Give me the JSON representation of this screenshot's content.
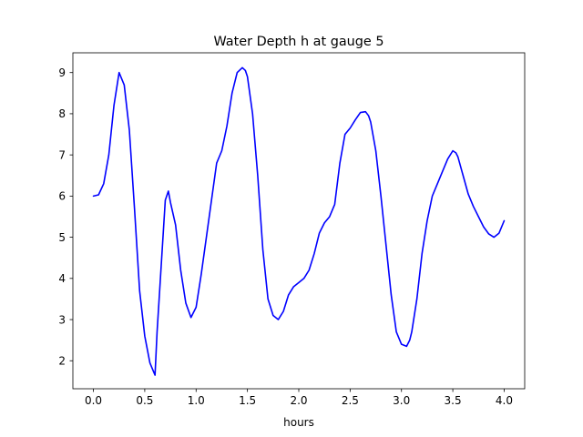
{
  "chart_data": {
    "type": "line",
    "title": "Water Depth h at gauge 5",
    "xlabel": "hours",
    "ylabel": "",
    "xlim": [
      -0.2,
      4.2
    ],
    "ylim": [
      1.32,
      9.48
    ],
    "xticks": [
      0.0,
      0.5,
      1.0,
      1.5,
      2.0,
      2.5,
      3.0,
      3.5,
      4.0
    ],
    "xtick_labels": [
      "0.0",
      "0.5",
      "1.0",
      "1.5",
      "2.0",
      "2.5",
      "3.0",
      "3.5",
      "4.0"
    ],
    "yticks": [
      2,
      3,
      4,
      5,
      6,
      7,
      8,
      9
    ],
    "ytick_labels": [
      "2",
      "3",
      "4",
      "5",
      "6",
      "7",
      "8",
      "9"
    ],
    "grid": false,
    "line_color": "#0000ff",
    "series": [
      {
        "x": [
          0.0,
          0.05,
          0.1,
          0.15,
          0.2,
          0.25,
          0.3,
          0.35,
          0.4,
          0.45,
          0.5,
          0.55,
          0.6,
          0.62,
          0.65,
          0.7,
          0.73,
          0.75,
          0.8,
          0.85,
          0.9,
          0.95,
          1.0,
          1.05,
          1.1,
          1.15,
          1.2,
          1.25,
          1.3,
          1.35,
          1.4,
          1.45,
          1.48,
          1.5,
          1.55,
          1.6,
          1.65,
          1.7,
          1.75,
          1.8,
          1.85,
          1.9,
          1.95,
          2.0,
          2.05,
          2.1,
          2.15,
          2.2,
          2.25,
          2.3,
          2.35,
          2.4,
          2.45,
          2.5,
          2.55,
          2.6,
          2.65,
          2.68,
          2.7,
          2.75,
          2.8,
          2.85,
          2.9,
          2.95,
          3.0,
          3.05,
          3.08,
          3.1,
          3.15,
          3.2,
          3.25,
          3.3,
          3.35,
          3.4,
          3.45,
          3.5,
          3.53,
          3.55,
          3.6,
          3.65,
          3.7,
          3.75,
          3.8,
          3.85,
          3.9,
          3.95,
          4.0
        ],
        "y": [
          6.0,
          6.03,
          6.3,
          7.0,
          8.2,
          9.0,
          8.7,
          7.6,
          5.7,
          3.7,
          2.6,
          1.95,
          1.65,
          2.7,
          3.9,
          5.9,
          6.12,
          5.85,
          5.3,
          4.2,
          3.4,
          3.05,
          3.3,
          4.1,
          5.0,
          5.9,
          6.8,
          7.1,
          7.7,
          8.5,
          9.0,
          9.12,
          9.05,
          8.9,
          8.0,
          6.5,
          4.7,
          3.5,
          3.1,
          3.0,
          3.2,
          3.6,
          3.8,
          3.9,
          4.0,
          4.2,
          4.6,
          5.1,
          5.35,
          5.5,
          5.8,
          6.8,
          7.5,
          7.65,
          7.85,
          8.03,
          8.05,
          7.95,
          7.8,
          7.1,
          6.0,
          4.8,
          3.6,
          2.7,
          2.4,
          2.35,
          2.5,
          2.7,
          3.5,
          4.6,
          5.4,
          6.0,
          6.3,
          6.6,
          6.9,
          7.1,
          7.05,
          6.95,
          6.5,
          6.05,
          5.75,
          5.5,
          5.25,
          5.08,
          5.0,
          5.1,
          5.4
        ]
      }
    ]
  }
}
